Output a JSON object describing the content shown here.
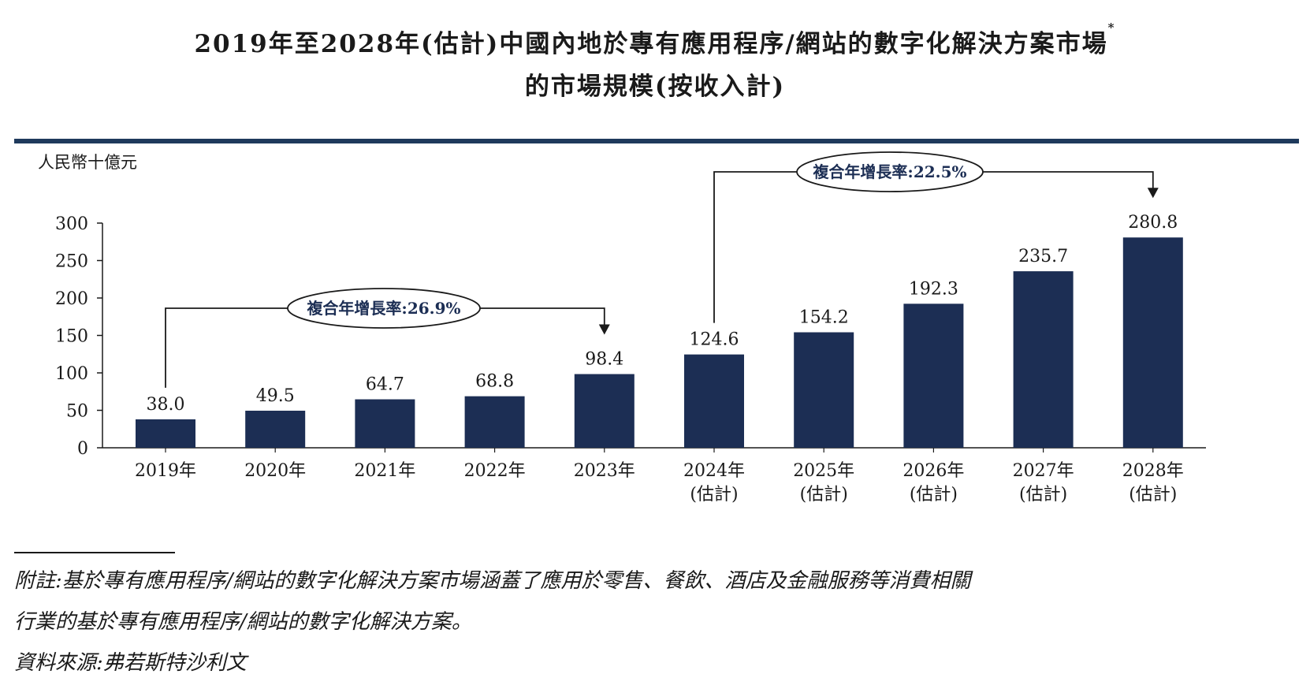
{
  "title": {
    "line1": "2019年至2028年(估計)中國內地於專有應用程序/網站的數字化解決方案市場",
    "footnote_mark": "*",
    "line2": "的市場規模(按收入計)"
  },
  "colors": {
    "bar": "#1c2e54",
    "rule": "#1f3a5c",
    "text": "#1a1a1a"
  },
  "chart_data": {
    "type": "bar",
    "ylabel": "人民幣十億元",
    "ylim": [
      0,
      300
    ],
    "yticks": [
      0,
      50,
      100,
      150,
      200,
      250,
      300
    ],
    "categories": [
      {
        "year": "2019年",
        "note": ""
      },
      {
        "year": "2020年",
        "note": ""
      },
      {
        "year": "2021年",
        "note": ""
      },
      {
        "year": "2022年",
        "note": ""
      },
      {
        "year": "2023年",
        "note": ""
      },
      {
        "year": "2024年",
        "note": "(估計)"
      },
      {
        "year": "2025年",
        "note": "(估計)"
      },
      {
        "year": "2026年",
        "note": "(估計)"
      },
      {
        "year": "2027年",
        "note": "(估計)"
      },
      {
        "year": "2028年",
        "note": "(估計)"
      }
    ],
    "values": [
      38.0,
      49.5,
      64.7,
      68.8,
      98.4,
      124.6,
      154.2,
      192.3,
      235.7,
      280.8
    ],
    "value_labels": [
      "38.0",
      "49.5",
      "64.7",
      "68.8",
      "98.4",
      "124.6",
      "154.2",
      "192.3",
      "235.7",
      "280.8"
    ],
    "cagr_annotations": [
      {
        "label": "複合年增長率:26.9%",
        "from_index": 0,
        "to_index": 4
      },
      {
        "label": "複合年增長率:22.5%",
        "from_index": 5,
        "to_index": 9
      }
    ]
  },
  "footnotes": {
    "note_line1": "附註:基於專有應用程序/網站的數字化解決方案市場涵蓋了應用於零售、餐飲、酒店及金融服務等消費相關",
    "note_line2": "行業的基於專有應用程序/網站的數字化解決方案。",
    "source": "資料來源:弗若斯特沙利文"
  }
}
